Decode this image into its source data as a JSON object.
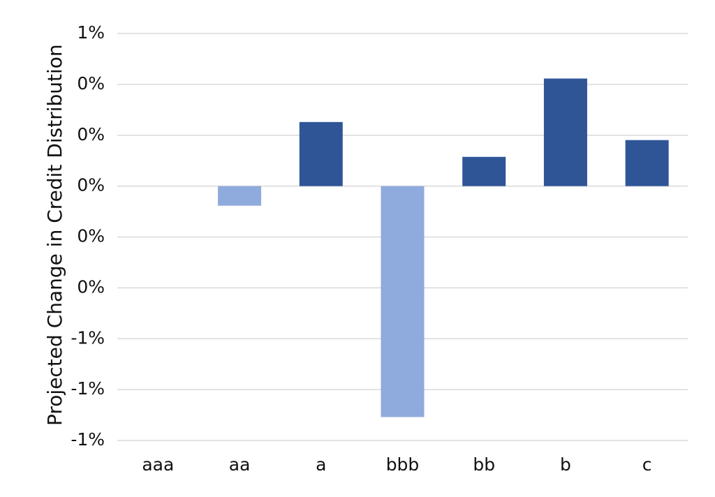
{
  "chart_data": {
    "type": "bar",
    "y_label": "Projected Change in Credit Distribution",
    "categories": [
      "aaa",
      "aa",
      "a",
      "bbb",
      "bb",
      "b",
      "c"
    ],
    "values": [
      0,
      -0.077,
      0.252,
      -0.908,
      0.115,
      0.423,
      0.181
    ],
    "colors": [
      "#2f5597",
      "#8faadc",
      "#2f5597",
      "#8faadc",
      "#2f5597",
      "#2f5597",
      "#2f5597"
    ],
    "ylim": [
      -1.0,
      0.6
    ],
    "yticks": [
      {
        "value": -1.0,
        "label": "-1%"
      },
      {
        "value": -0.8,
        "label": "-1%"
      },
      {
        "value": -0.6,
        "label": "-1%"
      },
      {
        "value": -0.4,
        "label": "0%"
      },
      {
        "value": -0.2,
        "label": "0%"
      },
      {
        "value": 0,
        "label": "0%"
      },
      {
        "value": 0.2,
        "label": "0%"
      },
      {
        "value": 0.4,
        "label": "0%"
      },
      {
        "value": 0.6,
        "label": "1%"
      }
    ],
    "grid": true
  }
}
